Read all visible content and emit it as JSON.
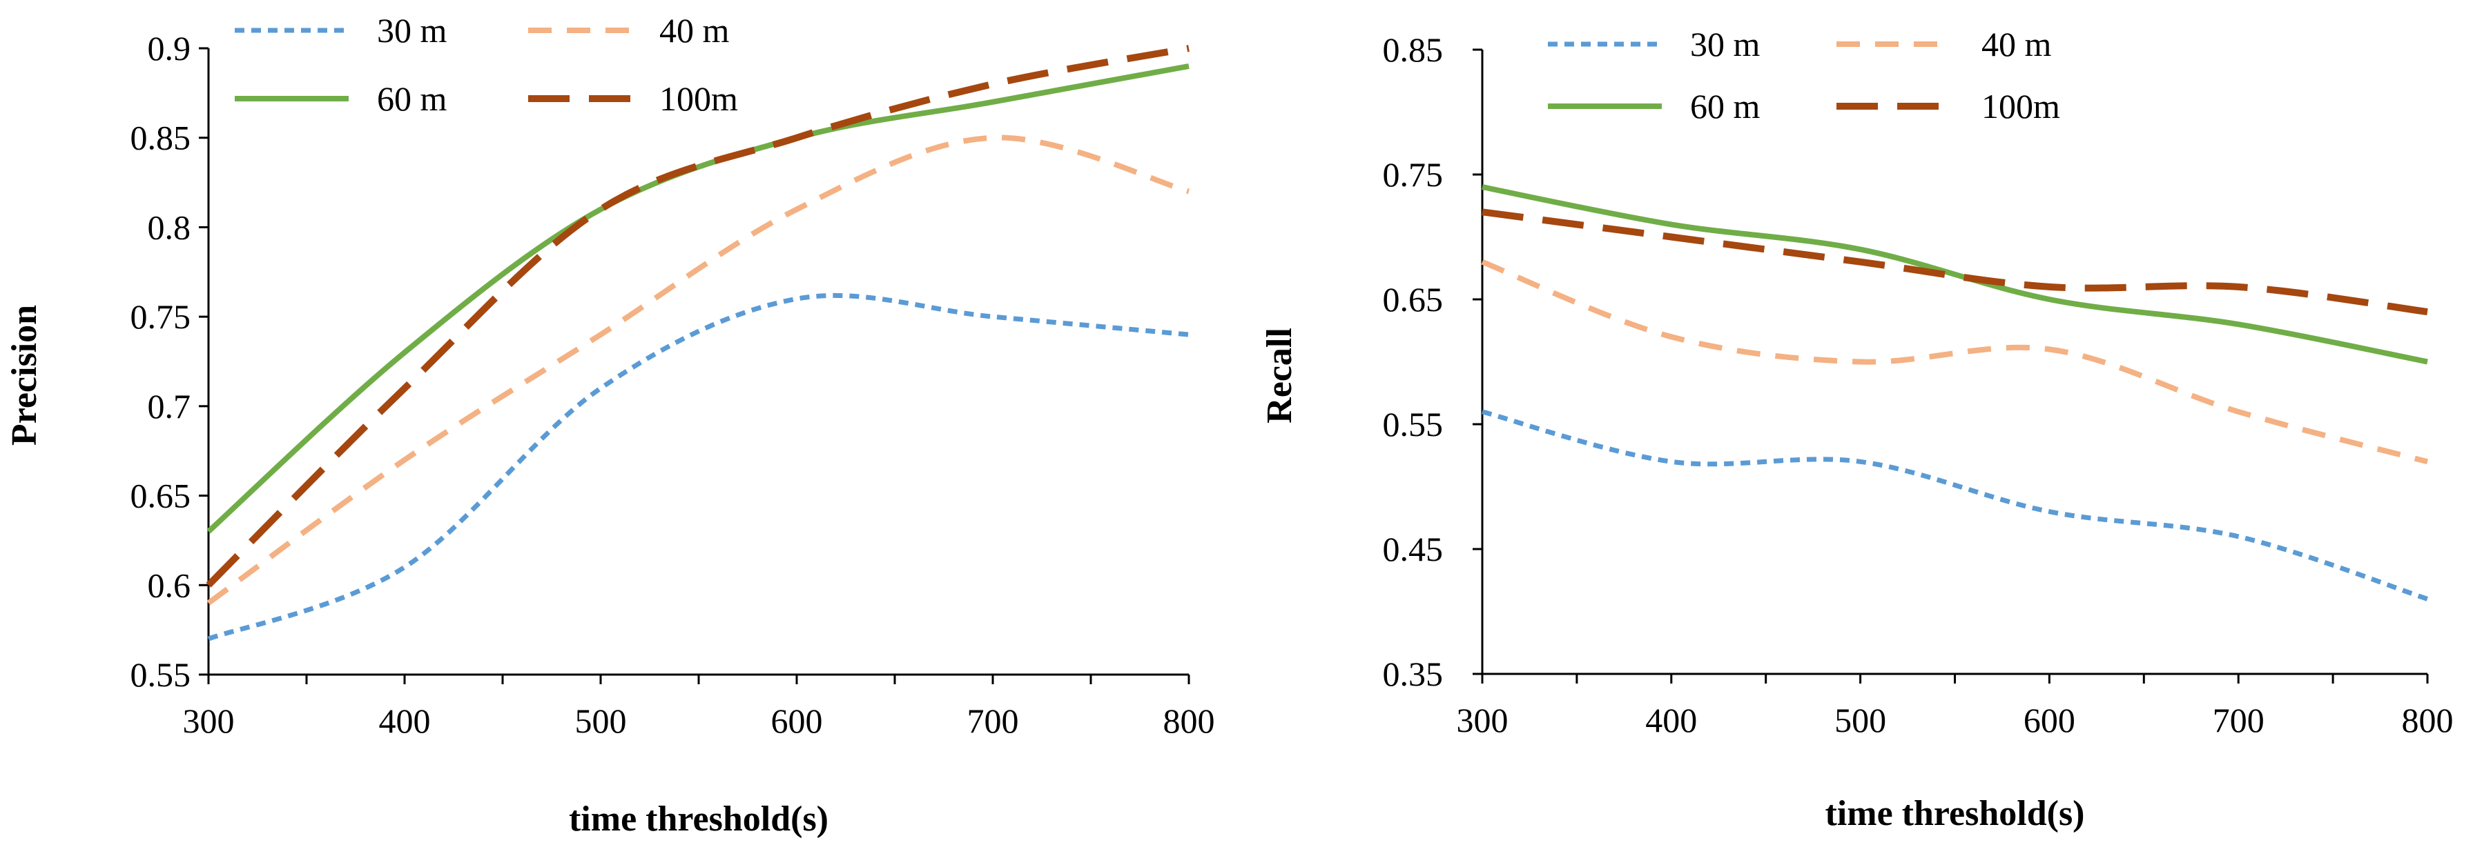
{
  "chart_data": [
    {
      "type": "line",
      "title": "",
      "xlabel": "time threshold(s)",
      "ylabel": "Precision",
      "xlim": [
        300,
        800
      ],
      "ylim": [
        0.55,
        0.9
      ],
      "xticks": [
        300,
        400,
        500,
        600,
        700,
        800
      ],
      "yticks": [
        0.55,
        0.6,
        0.65,
        0.7,
        0.75,
        0.8,
        0.85,
        0.9
      ],
      "ytick_labels": [
        "0.55",
        "0.6",
        "0.65",
        "0.7",
        "0.75",
        "0.8",
        "0.85",
        "0.9"
      ],
      "grid": false,
      "legend_position": "top",
      "x": [
        300,
        400,
        500,
        600,
        700,
        800
      ],
      "series": [
        {
          "name": "30 m",
          "color": "#5B9BD5",
          "style": "dotted",
          "values": [
            0.57,
            0.61,
            0.71,
            0.76,
            0.75,
            0.74
          ]
        },
        {
          "name": "40 m",
          "color": "#F4B183",
          "style": "dashed",
          "values": [
            0.59,
            0.67,
            0.74,
            0.81,
            0.85,
            0.82
          ]
        },
        {
          "name": "60 m",
          "color": "#70AD47",
          "style": "solid",
          "values": [
            0.63,
            0.73,
            0.81,
            0.85,
            0.87,
            0.89
          ]
        },
        {
          "name": "100m",
          "color": "#A5470F",
          "style": "longdash",
          "values": [
            0.6,
            0.71,
            0.81,
            0.85,
            0.88,
            0.9
          ]
        }
      ]
    },
    {
      "type": "line",
      "title": "",
      "xlabel": "time threshold(s)",
      "ylabel": "Recall",
      "xlim": [
        300,
        800
      ],
      "ylim": [
        0.35,
        0.85
      ],
      "xticks": [
        300,
        400,
        500,
        600,
        700,
        800
      ],
      "yticks": [
        0.35,
        0.45,
        0.55,
        0.65,
        0.75,
        0.85
      ],
      "ytick_labels": [
        "0.35",
        "0.45",
        "0.55",
        "0.65",
        "0.75",
        "0.85"
      ],
      "grid": false,
      "legend_position": "top",
      "x": [
        300,
        400,
        500,
        600,
        700,
        800
      ],
      "series": [
        {
          "name": "30 m",
          "color": "#5B9BD5",
          "style": "dotted",
          "values": [
            0.56,
            0.52,
            0.52,
            0.48,
            0.46,
            0.41
          ]
        },
        {
          "name": "40 m",
          "color": "#F4B183",
          "style": "dashed",
          "values": [
            0.68,
            0.62,
            0.6,
            0.61,
            0.56,
            0.52
          ]
        },
        {
          "name": "60 m",
          "color": "#70AD47",
          "style": "solid",
          "values": [
            0.74,
            0.71,
            0.69,
            0.65,
            0.63,
            0.6
          ]
        },
        {
          "name": "100m",
          "color": "#A5470F",
          "style": "longdash",
          "values": [
            0.72,
            0.7,
            0.68,
            0.66,
            0.66,
            0.64
          ]
        }
      ]
    }
  ]
}
